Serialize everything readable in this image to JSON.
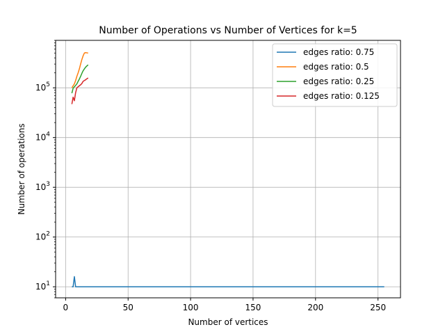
{
  "chart_data": {
    "type": "line",
    "title": "Number of Operations vs Number of Vertices for k=5",
    "xlabel": "Number of vertices",
    "ylabel": "Number of operations",
    "xlim": [
      -8,
      268
    ],
    "ylim": [
      6,
      900000
    ],
    "yscale": "log",
    "grid": true,
    "legend_position": "top-right",
    "x_ticks": [
      0,
      50,
      100,
      150,
      200,
      250
    ],
    "y_ticks": [
      10,
      100,
      1000,
      10000,
      100000
    ],
    "y_tick_labels": [
      {
        "base": "10",
        "exp": "1"
      },
      {
        "base": "10",
        "exp": "2"
      },
      {
        "base": "10",
        "exp": "3"
      },
      {
        "base": "10",
        "exp": "4"
      },
      {
        "base": "10",
        "exp": "5"
      }
    ],
    "series": [
      {
        "name": "edges ratio: 0.75",
        "color": "#1f77b4",
        "x": [
          5,
          6,
          7,
          8,
          9,
          10,
          255
        ],
        "y": [
          10,
          10,
          16,
          10,
          10,
          10,
          10
        ]
      },
      {
        "name": "edges ratio: 0.5",
        "color": "#ff7f0e",
        "x": [
          5,
          6,
          7,
          8,
          9,
          10,
          11,
          12,
          13,
          14,
          15,
          16,
          17,
          18
        ],
        "y": [
          100000,
          110000,
          120000,
          140000,
          170000,
          200000,
          240000,
          300000,
          370000,
          440000,
          500000,
          510000,
          505000,
          500000
        ]
      },
      {
        "name": "edges ratio: 0.25",
        "color": "#2ca02c",
        "x": [
          5,
          6,
          7,
          8,
          9,
          10,
          11,
          12,
          13,
          14,
          15,
          16,
          17,
          18
        ],
        "y": [
          78000,
          98000,
          105000,
          112000,
          120000,
          135000,
          150000,
          170000,
          195000,
          220000,
          240000,
          260000,
          275000,
          290000
        ]
      },
      {
        "name": "edges ratio: 0.125",
        "color": "#d62728",
        "x": [
          5,
          6,
          7,
          8,
          9,
          10,
          11,
          12,
          13,
          14,
          15,
          16,
          17,
          18
        ],
        "y": [
          47000,
          65000,
          55000,
          80000,
          100000,
          105000,
          110000,
          115000,
          122000,
          135000,
          140000,
          145000,
          152000,
          158000
        ]
      }
    ]
  }
}
